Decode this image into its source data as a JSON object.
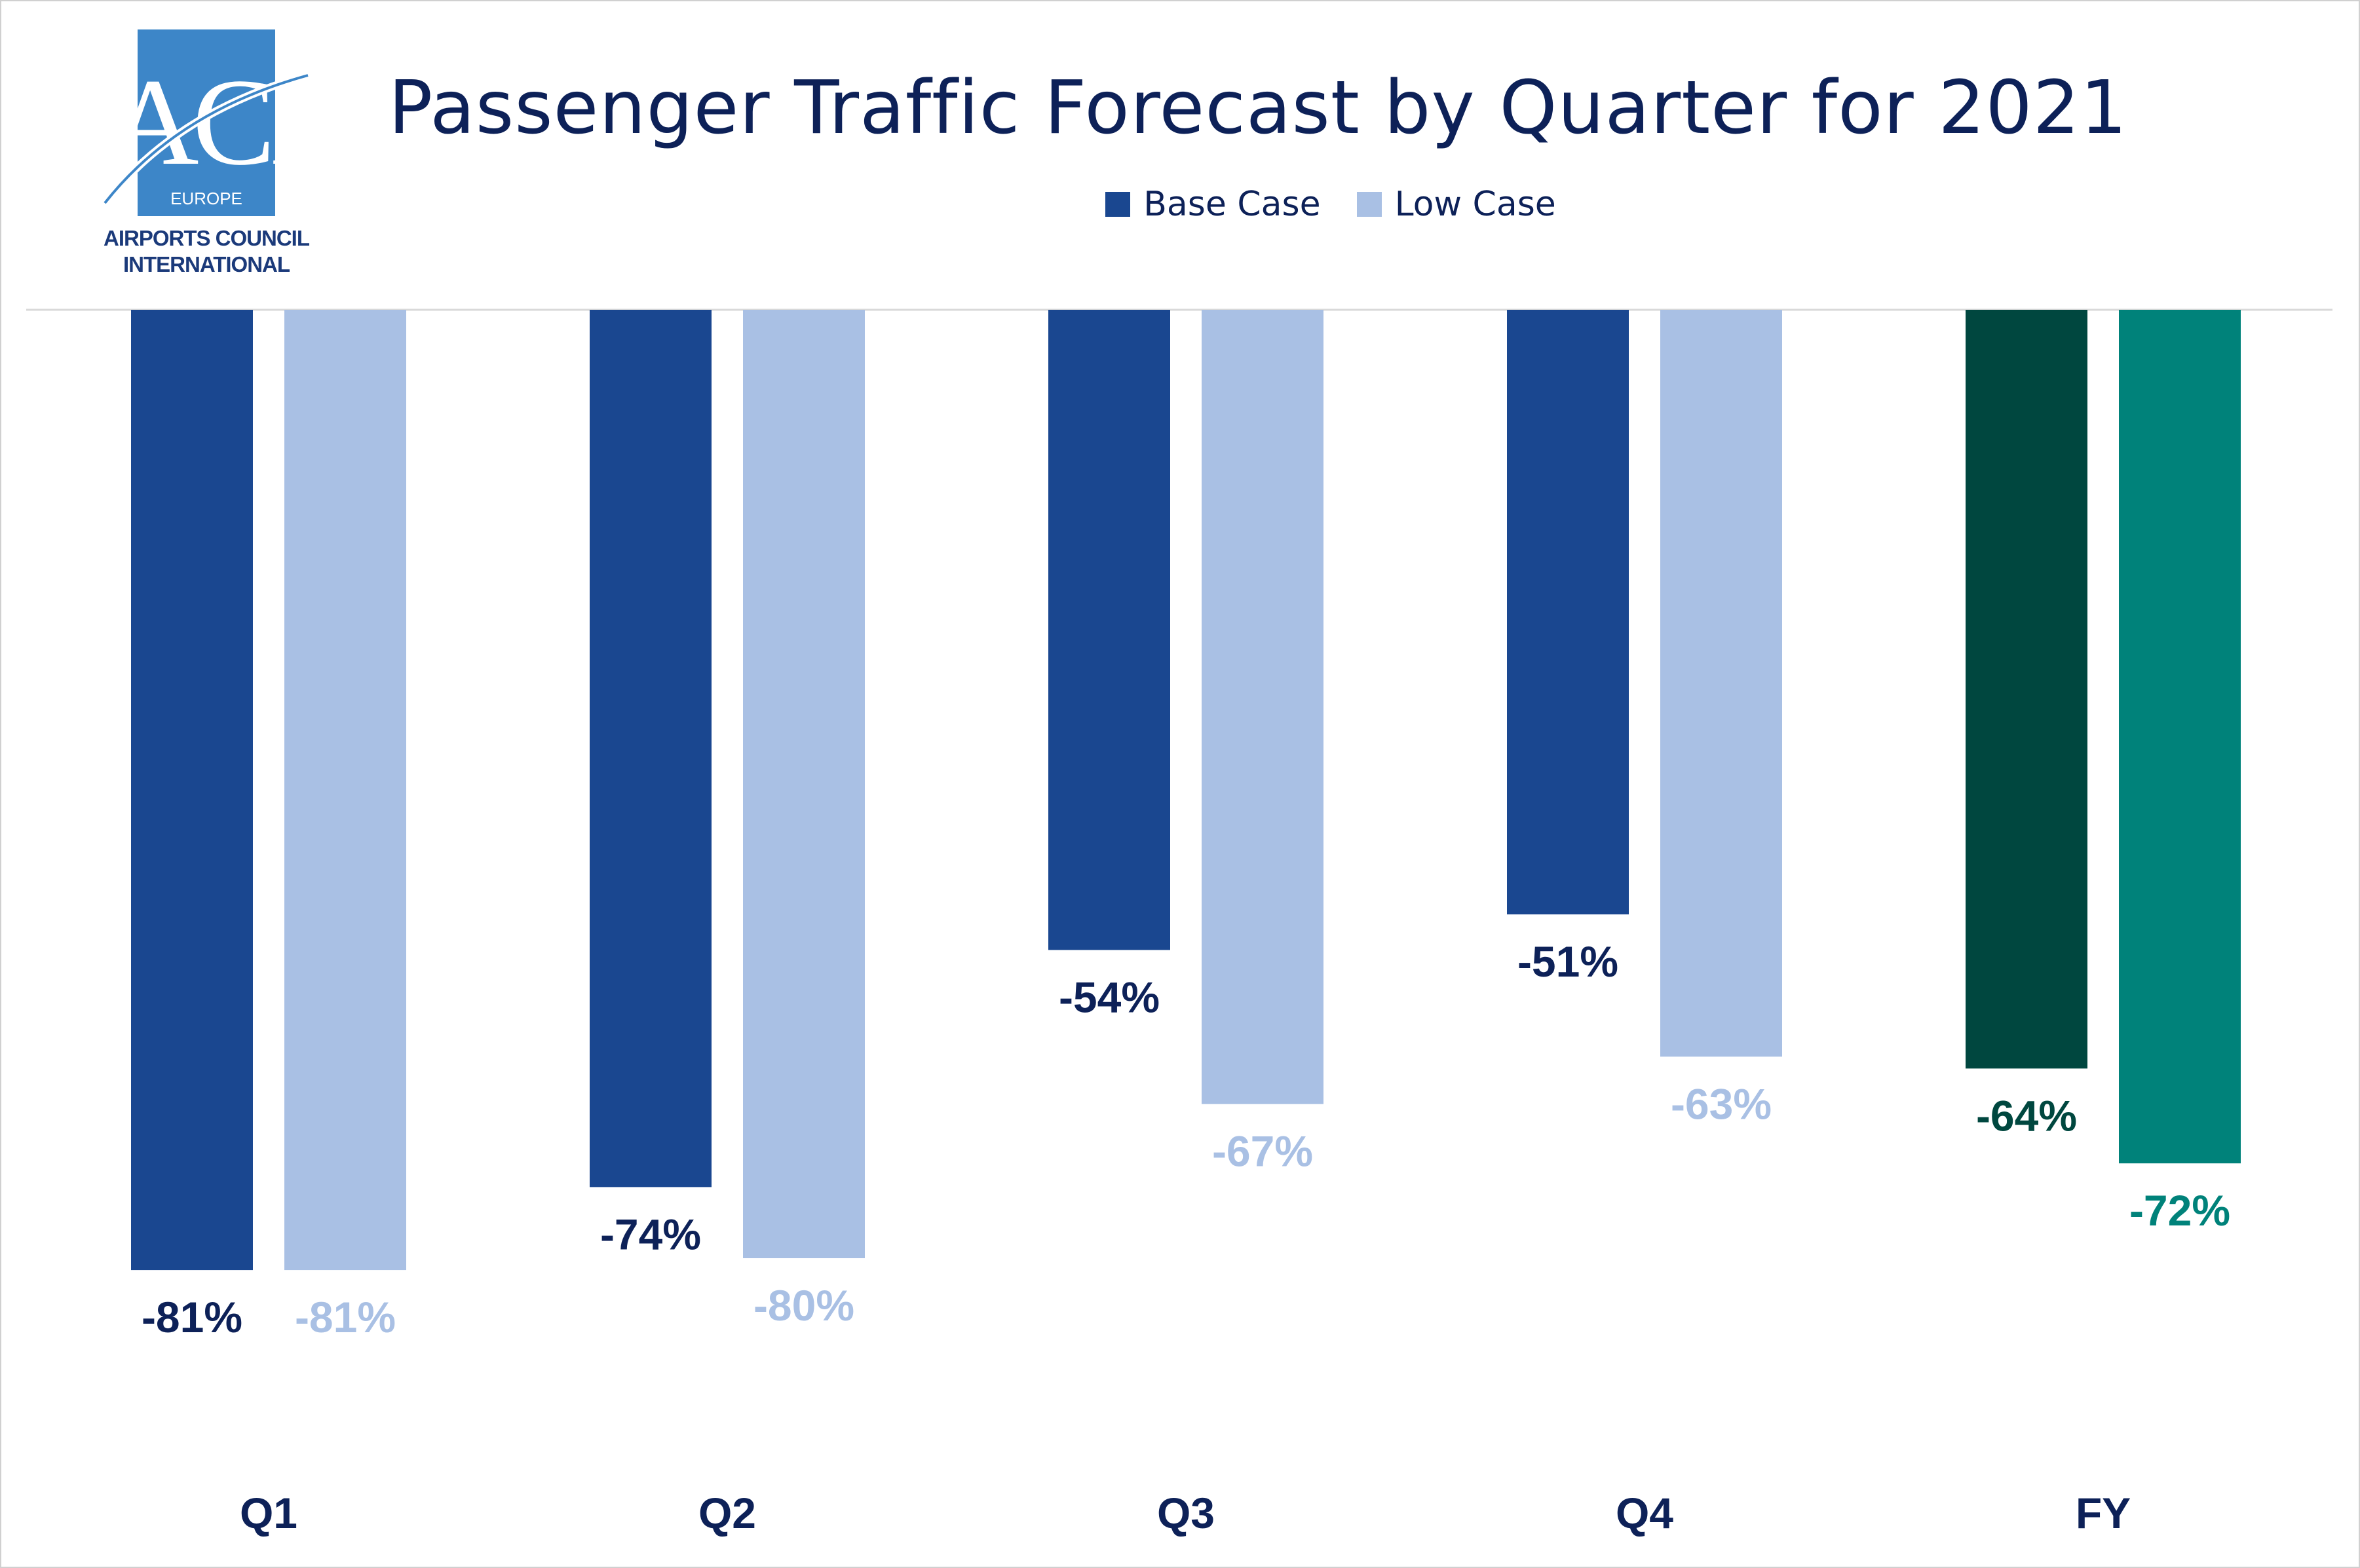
{
  "logo": {
    "mark": "ACI",
    "sub": "EUROPE",
    "line1": "AIRPORTS COUNCIL",
    "line2": "INTERNATIONAL",
    "color": "#3d86c8"
  },
  "chart_data": {
    "type": "bar",
    "title": "Passenger Traffic Forecast by Quarter for 2021",
    "categories": [
      "Q1",
      "Q2",
      "Q3",
      "Q4",
      "FY"
    ],
    "series": [
      {
        "name": "Base Case",
        "values": [
          -81,
          -74,
          -54,
          -51,
          -64
        ],
        "color": "#1a4790",
        "colors": [
          "#1a4790",
          "#1a4790",
          "#1a4790",
          "#1a4790",
          "#00473f"
        ],
        "label_color": "#0d2158"
      },
      {
        "name": "Low Case",
        "values": [
          -81,
          -80,
          -67,
          -63,
          -72
        ],
        "color": "#a9c0e4",
        "colors": [
          "#a9c0e4",
          "#a9c0e4",
          "#a9c0e4",
          "#a9c0e4",
          "#00827a"
        ],
        "label_color": "#a9c0e4"
      }
    ],
    "labels": [
      [
        "-81%",
        "-74%",
        "-54%",
        "-51%",
        "-64%"
      ],
      [
        "-81%",
        "-80%",
        "-67%",
        "-63%",
        "-72%"
      ]
    ],
    "fy_label_colors": [
      "#00473f",
      "#00827a"
    ],
    "ylim": [
      -100,
      0
    ],
    "legend_position": "top-center",
    "grid": false
  }
}
